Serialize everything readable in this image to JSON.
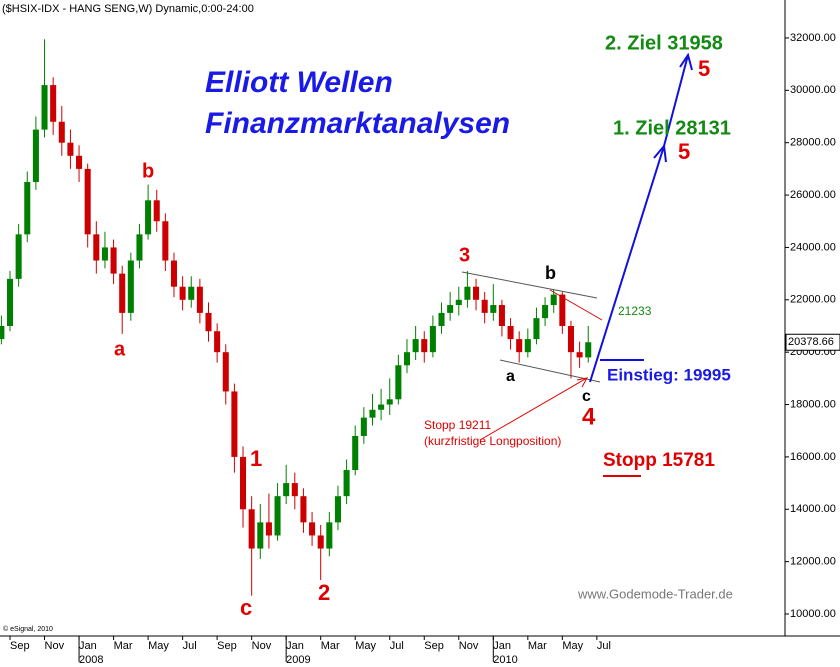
{
  "chart_data": {
    "type": "candlestick",
    "title": "($HSIX-IDX - HANG SENG,W) Dynamic,0:00-24:00",
    "credit": "© eSignal, 2010",
    "watermark": "www.Godemode-Trader.de",
    "up_color": "#008000",
    "down_color": "#cc0000",
    "xlim": [
      -4.58,
      40.9
    ],
    "ylim": [
      9160,
      33450
    ],
    "x": [
      -4.5,
      -4,
      -3.5,
      -3,
      -2.5,
      -2,
      -1.5,
      -1,
      -0.5,
      0,
      0.5,
      1,
      1.5,
      2,
      2.5,
      3,
      3.5,
      4,
      4.5,
      5,
      5.5,
      6,
      6.5,
      7,
      7.5,
      8,
      8.5,
      9,
      9.5,
      10,
      10.5,
      11,
      11.5,
      12,
      12.5,
      13,
      13.5,
      14,
      14.5,
      15,
      15.5,
      16,
      16.5,
      17,
      17.5,
      18,
      18.5,
      19,
      19.5,
      20,
      20.5,
      21,
      21.5,
      22,
      22.5,
      23,
      23.5,
      24,
      24.5,
      25,
      25.5,
      26,
      26.5,
      27,
      27.5,
      28,
      28.5,
      29,
      29.5
    ],
    "open": [
      20500,
      21000,
      22800,
      24500,
      26500,
      28500,
      30200,
      28800,
      28000,
      27500,
      27000,
      24500,
      23500,
      24000,
      23000,
      21500,
      23500,
      24500,
      25800,
      25000,
      23500,
      22500,
      22000,
      22500,
      21500,
      20800,
      20000,
      18500,
      16000,
      14000,
      12500,
      13500,
      13000,
      14500,
      15000,
      14500,
      13500,
      13000,
      12500,
      13500,
      14500,
      15500,
      16800,
      17500,
      17800,
      18000,
      18200,
      19500,
      20000,
      20500,
      20000,
      21000,
      21500,
      21800,
      22000,
      22500,
      22000,
      21500,
      21800,
      21000,
      20500,
      20000,
      20500,
      21300,
      21800,
      22200,
      21000,
      20000,
      19800
    ],
    "high": [
      21400,
      23100,
      24900,
      26900,
      29000,
      31950,
      30500,
      29400,
      28500,
      27900,
      27200,
      25000,
      24600,
      24300,
      23300,
      23800,
      24900,
      26400,
      26200,
      25300,
      23800,
      22900,
      22900,
      22800,
      21900,
      21100,
      20300,
      18800,
      16400,
      14500,
      14200,
      14600,
      15000,
      15700,
      15400,
      14800,
      13900,
      13400,
      13900,
      14900,
      15900,
      17200,
      17900,
      18400,
      18600,
      19000,
      19900,
      20500,
      21000,
      20800,
      21400,
      21900,
      22300,
      22500,
      23100,
      22800,
      22300,
      22600,
      22000,
      21300,
      20800,
      20900,
      21700,
      22100,
      22400,
      22300,
      21200,
      20400,
      21000
    ],
    "low": [
      20300,
      20800,
      22500,
      24200,
      26200,
      28200,
      28300,
      27500,
      27000,
      26500,
      24000,
      23000,
      23200,
      22600,
      20700,
      21200,
      23200,
      24300,
      24600,
      23100,
      22100,
      21600,
      21700,
      21100,
      20400,
      19600,
      18000,
      15400,
      13300,
      10700,
      12100,
      12500,
      12800,
      14200,
      14000,
      13100,
      12600,
      11300,
      12200,
      13200,
      14200,
      15300,
      16500,
      17200,
      17400,
      17600,
      18000,
      19200,
      19700,
      19600,
      19800,
      20700,
      21200,
      21400,
      21700,
      21600,
      21100,
      21200,
      20600,
      20100,
      19600,
      19800,
      20300,
      21000,
      21500,
      20700,
      19000,
      19400,
      19600
    ],
    "close": [
      21000,
      22800,
      24500,
      26500,
      28500,
      30200,
      28800,
      28000,
      27500,
      27000,
      24500,
      23500,
      24000,
      23000,
      21500,
      23500,
      24500,
      25800,
      25000,
      23500,
      22500,
      22000,
      22500,
      21500,
      20800,
      20000,
      18500,
      16000,
      14000,
      12500,
      13500,
      13000,
      14500,
      15000,
      14500,
      13500,
      13000,
      12500,
      13500,
      14500,
      15500,
      16800,
      17500,
      17800,
      18000,
      18200,
      19500,
      20000,
      20500,
      20000,
      21000,
      21500,
      21800,
      22000,
      22500,
      22000,
      21500,
      21800,
      21000,
      20500,
      20000,
      20500,
      21300,
      21800,
      22200,
      21000,
      20000,
      19800,
      20378.66
    ],
    "last_price": 20378.66,
    "yticks": [
      {
        "value": 10000,
        "label": "10000.00"
      },
      {
        "value": 12000,
        "label": "12000.00"
      },
      {
        "value": 14000,
        "label": "14000.00"
      },
      {
        "value": 16000,
        "label": "16000.00"
      },
      {
        "value": 18000,
        "label": "18000.00"
      },
      {
        "value": 20000,
        "label": "20000.00"
      },
      {
        "value": 22000,
        "label": "22000.00"
      },
      {
        "value": 24000,
        "label": "24000.00"
      },
      {
        "value": 26000,
        "label": "26000.00"
      },
      {
        "value": 28000,
        "label": "28000.00"
      },
      {
        "value": 30000,
        "label": "30000.00"
      },
      {
        "value": 32000,
        "label": "32000.00"
      }
    ],
    "xticks": [
      {
        "value": -4,
        "label": "Sep"
      },
      {
        "value": -2,
        "label": "Nov"
      },
      {
        "value": 0,
        "label": "Jan"
      },
      {
        "value": 2,
        "label": "Mar"
      },
      {
        "value": 4,
        "label": "May"
      },
      {
        "value": 6,
        "label": "Jul"
      },
      {
        "value": 8,
        "label": "Sep"
      },
      {
        "value": 10,
        "label": "Nov"
      },
      {
        "value": 12,
        "label": "Jan"
      },
      {
        "value": 14,
        "label": "Mar"
      },
      {
        "value": 16,
        "label": "May"
      },
      {
        "value": 18,
        "label": "Jul"
      },
      {
        "value": 20,
        "label": "Sep"
      },
      {
        "value": 22,
        "label": "Nov"
      },
      {
        "value": 24,
        "label": "Jan"
      },
      {
        "value": 26,
        "label": "Mar"
      },
      {
        "value": 28,
        "label": "May"
      },
      {
        "value": 30,
        "label": "Jul"
      }
    ],
    "x_year_ticks": [
      {
        "value": 0,
        "label": "2008"
      },
      {
        "value": 12,
        "label": "2009"
      },
      {
        "value": 24,
        "label": "2010"
      }
    ],
    "annotations": {
      "heading1": "Elliott Wellen",
      "heading2": "Finanzmarktanalysen",
      "target2": "2. Ziel 31958",
      "target2_wave": "5",
      "target1": "1. Ziel 28131",
      "target1_wave": "5",
      "wave3": "3",
      "wave_b_small": "b",
      "resistance": "21233",
      "wave_a_small": "a",
      "entry": "Einstieg: 19995",
      "wave_c_small": "c",
      "wave4": "4",
      "stop_short": "Stopp 19211",
      "stop_short_note": "(kurzfristige Longposition)",
      "stop": "Stopp 15781",
      "wave1": "1",
      "wave_c": "c",
      "wave2": "2",
      "wave_a": "a",
      "wave_b": "b"
    }
  }
}
